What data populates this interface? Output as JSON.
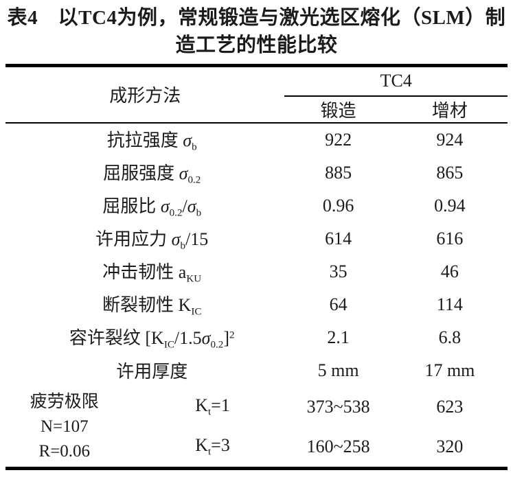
{
  "title_lines": [
    "表4　以TC4为例，常规锻造与激光选区熔化（SLM）制",
    "造工艺的性能比较"
  ],
  "header": {
    "method_label": "成形方法",
    "group_label": "TC4",
    "col_forge": "锻造",
    "col_am": "增材"
  },
  "rows": [
    {
      "label": [
        {
          "t": "抗拉强度 "
        },
        {
          "t": "σ",
          "i": true
        },
        {
          "t": "b",
          "sub": true
        }
      ],
      "forge": "922",
      "am": "924"
    },
    {
      "label": [
        {
          "t": "屈服强度 "
        },
        {
          "t": "σ",
          "i": true
        },
        {
          "t": "0.2",
          "sub": true
        }
      ],
      "forge": "885",
      "am": "865"
    },
    {
      "label": [
        {
          "t": "屈服比 "
        },
        {
          "t": "σ",
          "i": true
        },
        {
          "t": "0.2",
          "sub": true
        },
        {
          "t": "/"
        },
        {
          "t": "σ",
          "i": true
        },
        {
          "t": "b",
          "sub": true
        }
      ],
      "forge": "0.96",
      "am": "0.94"
    },
    {
      "label": [
        {
          "t": "许用应力 "
        },
        {
          "t": "σ",
          "i": true
        },
        {
          "t": "b",
          "sub": true
        },
        {
          "t": "/15"
        }
      ],
      "forge": "614",
      "am": "616"
    },
    {
      "label": [
        {
          "t": "冲击韧性 a"
        },
        {
          "t": "KU",
          "sub": true
        }
      ],
      "forge": "35",
      "am": "46"
    },
    {
      "label": [
        {
          "t": "断裂韧性 K"
        },
        {
          "t": "IC",
          "sub": true
        }
      ],
      "forge": "64",
      "am": "114"
    },
    {
      "label": [
        {
          "t": "容许裂纹 [K"
        },
        {
          "t": "IC",
          "sub": true
        },
        {
          "t": "/1.5"
        },
        {
          "t": "σ",
          "i": true
        },
        {
          "t": "0.2",
          "sub": true
        },
        {
          "t": "]"
        },
        {
          "t": "2",
          "sup": true
        }
      ],
      "forge": "2.1",
      "am": "6.8"
    },
    {
      "label": [
        {
          "t": "许用厚度"
        }
      ],
      "forge": "5 mm",
      "am": "17 mm"
    }
  ],
  "fatigue": {
    "label_lines": [
      "疲劳极限",
      "N=107",
      "R=0.06"
    ],
    "rows": [
      {
        "kt": [
          {
            "t": "K"
          },
          {
            "t": "t",
            "sub": true
          },
          {
            "t": "=1"
          }
        ],
        "forge": "373~538",
        "am": "623"
      },
      {
        "kt": [
          {
            "t": "K"
          },
          {
            "t": "t",
            "sub": true
          },
          {
            "t": "=3"
          }
        ],
        "forge": "160~258",
        "am": "320"
      }
    ]
  },
  "colors": {
    "text": "#1b1b1b",
    "rule": "#000000",
    "background": "#ffffff"
  }
}
